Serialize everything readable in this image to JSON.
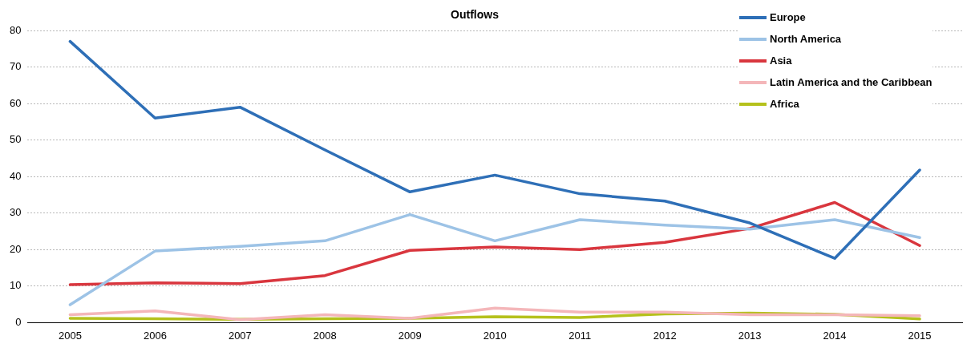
{
  "chart_data": {
    "type": "line",
    "title": "Outflows",
    "categories": [
      "2005",
      "2006",
      "2007",
      "2008",
      "2009",
      "2010",
      "2011",
      "2012",
      "2013",
      "2014",
      "2015"
    ],
    "series": [
      {
        "name": "Europe",
        "color": "#2e6fb7",
        "values": [
          77,
          56,
          59,
          47.3,
          35.8,
          40.4,
          35.3,
          33.3,
          27.3,
          17.6,
          41.8
        ]
      },
      {
        "name": "North America",
        "color": "#9dc3e6",
        "values": [
          4.9,
          19.6,
          20.9,
          22.4,
          29.6,
          22.4,
          28.2,
          26.7,
          25.6,
          28.2,
          23.3
        ]
      },
      {
        "name": "Asia",
        "color": "#d9363e",
        "values": [
          10.4,
          10.9,
          10.7,
          12.9,
          19.8,
          20.7,
          20,
          22,
          25.8,
          32.9,
          21.1
        ]
      },
      {
        "name": "Latin America and the Caribbean",
        "color": "#f4b6b9",
        "values": [
          2.2,
          3.2,
          0.8,
          2.2,
          1.2,
          4,
          2.9,
          2.9,
          2.2,
          2.2,
          1.9
        ]
      },
      {
        "name": "Africa",
        "color": "#b5c11c",
        "values": [
          1.2,
          1.1,
          0.9,
          1.1,
          1.2,
          1.6,
          1.4,
          2.4,
          2.6,
          2.3,
          1
        ]
      }
    ],
    "ylim": [
      0,
      80
    ],
    "yticks": [
      0,
      10,
      20,
      30,
      40,
      50,
      60,
      70,
      80
    ],
    "grid": "y",
    "legend": "top right",
    "marker": "none",
    "line_style": "solid"
  }
}
